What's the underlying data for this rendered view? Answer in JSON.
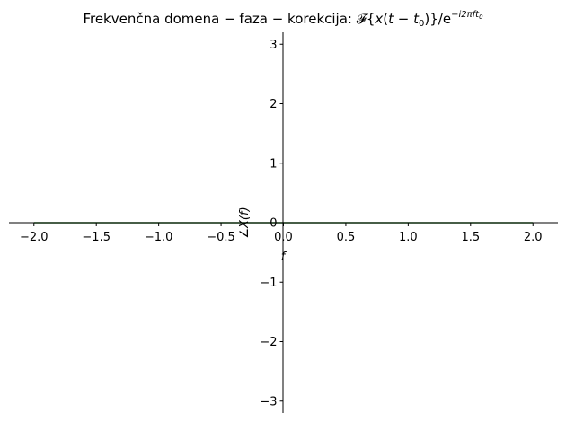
{
  "chart_data": {
    "type": "line",
    "title": {
      "prefix": "Frekvenčna domena − faza − korekcija: ",
      "F": "𝓕",
      "lbrace": "{",
      "x": "x",
      "paren_open": "(",
      "t": "t",
      "minus": " − ",
      "t0": "t",
      "t0_sub": "0",
      "paren_close": ")",
      "rbrace": "}",
      "slash_e": "/e",
      "exponent": "−i2πft",
      "exponent_sub": "0"
    },
    "xlabel": "f",
    "ylabel": "∠X(f)",
    "xlim": [
      -2.2,
      2.2
    ],
    "ylim": [
      -3.2,
      3.2
    ],
    "xticks": [
      -2.0,
      -1.5,
      -1.0,
      -0.5,
      0.0,
      0.5,
      1.0,
      1.5,
      2.0
    ],
    "xtick_labels": [
      "−2.0",
      "−1.5",
      "−1.0",
      "−0.5",
      "0.0",
      "0.5",
      "1.0",
      "1.5",
      "2.0"
    ],
    "yticks": [
      -3,
      -2,
      -1,
      0,
      1,
      2,
      3
    ],
    "ytick_labels": [
      "−3",
      "−2",
      "−1",
      "0",
      "1",
      "2",
      "3"
    ],
    "grid": false,
    "spines": "centered",
    "series": [
      {
        "color": "#1f7a1f",
        "x": [
          -2.0,
          2.0
        ],
        "y": [
          0.0,
          0.0
        ]
      }
    ]
  }
}
